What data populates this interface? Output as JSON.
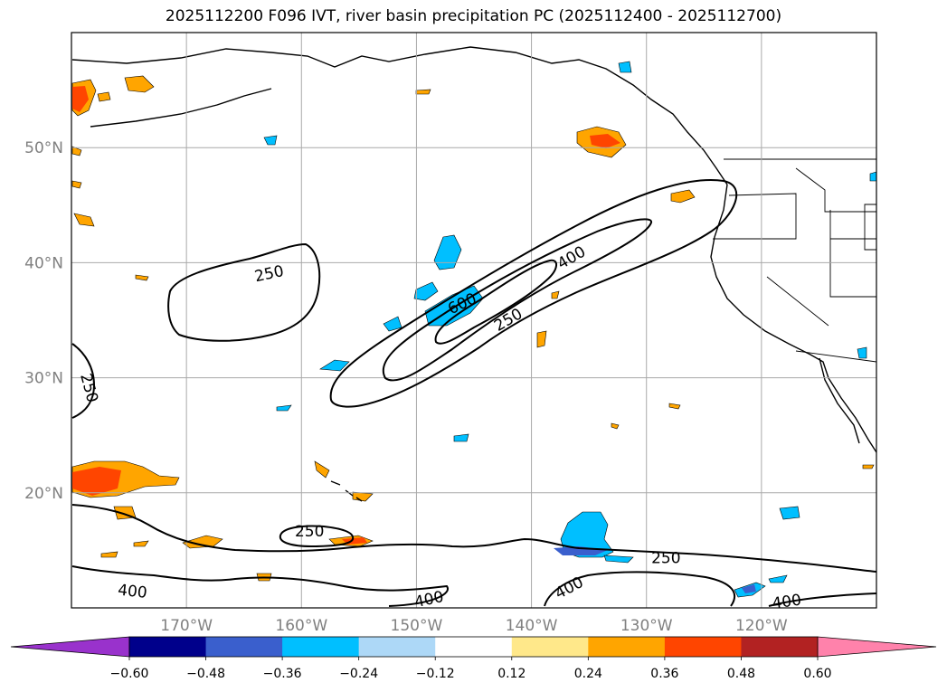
{
  "title": "2025112200 F096 IVT, river basin precipitation PC (2025112400 - 2025112700)",
  "chart_data": {
    "type": "heatmap",
    "map": {
      "lon_range": [
        -180,
        -110
      ],
      "lat_range": [
        10,
        60
      ],
      "grid": true
    },
    "x_ticks": [
      {
        "lon": -170,
        "label": "170°W"
      },
      {
        "lon": -160,
        "label": "160°W"
      },
      {
        "lon": -150,
        "label": "150°W"
      },
      {
        "lon": -140,
        "label": "140°W"
      },
      {
        "lon": -130,
        "label": "130°W"
      },
      {
        "lon": -120,
        "label": "120°W"
      }
    ],
    "y_ticks": [
      {
        "lat": 50,
        "label": "50°N"
      },
      {
        "lat": 40,
        "label": "40°N"
      },
      {
        "lat": 30,
        "label": "30°N"
      },
      {
        "lat": 20,
        "label": "20°N"
      }
    ],
    "colorbar": {
      "levels": [
        "−0.60",
        "−0.48",
        "−0.36",
        "−0.24",
        "−0.12",
        "0.12",
        "0.24",
        "0.36",
        "0.48",
        "0.60"
      ],
      "colors": [
        "#9932cc",
        "#00008b",
        "#3a5fcd",
        "#00bfff",
        "#add8f7",
        "#ffffff",
        "#ffe88a",
        "#ffa500",
        "#ff4500",
        "#b22222",
        "#ff82ab"
      ],
      "extend": "both"
    },
    "ivt_contour_labels": [
      {
        "text": "250",
        "lon": -162.8,
        "lat": 39.0,
        "angle": -12
      },
      {
        "text": "250",
        "lon": -178.5,
        "lat": 29.1,
        "angle": 75
      },
      {
        "text": "600",
        "lon": -146.0,
        "lat": 36.4,
        "angle": -25
      },
      {
        "text": "250",
        "lon": -142.0,
        "lat": 35.0,
        "angle": -30
      },
      {
        "text": "400",
        "lon": -136.5,
        "lat": 40.4,
        "angle": -30
      },
      {
        "text": "250",
        "lon": -159.3,
        "lat": 16.6,
        "angle": 0
      },
      {
        "text": "250",
        "lon": -128.3,
        "lat": 14.3,
        "angle": 0
      },
      {
        "text": "400",
        "lon": -174.7,
        "lat": 11.4,
        "angle": 6
      },
      {
        "text": "400",
        "lon": -148.9,
        "lat": 10.7,
        "angle": -12
      },
      {
        "text": "400",
        "lon": -136.7,
        "lat": 11.7,
        "angle": -28
      },
      {
        "text": "400",
        "lon": -117.8,
        "lat": 10.5,
        "angle": -8
      }
    ]
  }
}
